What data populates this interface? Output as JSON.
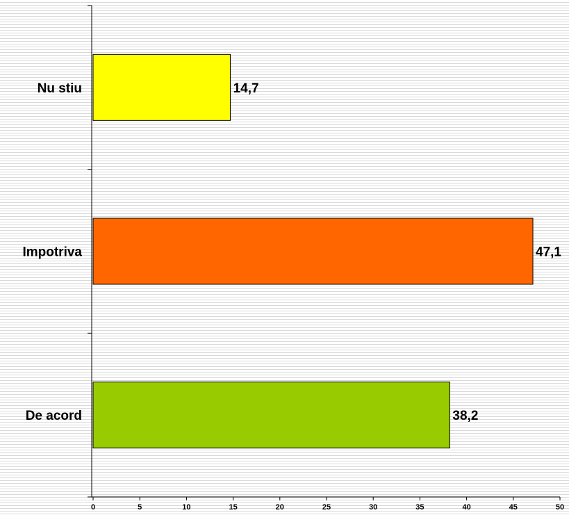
{
  "chart_data": {
    "type": "bar",
    "orientation": "horizontal",
    "categories": [
      "Nu stiu",
      "Impotriva",
      "De acord"
    ],
    "values": [
      14.7,
      47.1,
      38.2
    ],
    "value_labels": [
      "14,7",
      "47,1",
      "38,2"
    ],
    "colors": [
      "#ffff00",
      "#ff6600",
      "#99cc00"
    ],
    "xlim": [
      0,
      50
    ],
    "xticks": [
      0,
      5,
      10,
      15,
      20,
      25,
      30,
      35,
      40,
      45,
      50
    ],
    "title": "",
    "xlabel": "",
    "ylabel": "",
    "grid": false,
    "legend": "none"
  }
}
